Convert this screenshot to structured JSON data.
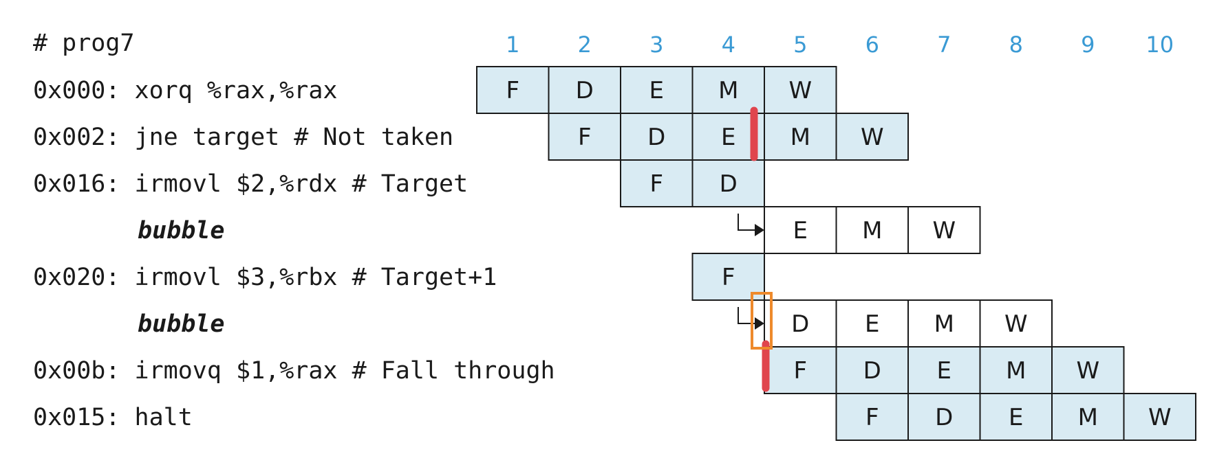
{
  "program_title": "# prog7",
  "cycles": [
    "1",
    "2",
    "3",
    "4",
    "5",
    "6",
    "7",
    "8",
    "9",
    "10"
  ],
  "colors": {
    "cycle_label": "#3a9ad4",
    "filled_cell": "#d9ebf3",
    "empty_cell": "#ffffff",
    "cell_border": "#1a1a1a",
    "red_marker": "#e0454d",
    "orange_marker": "#ee8a2c"
  },
  "instructions": [
    {
      "text": "0x000: xorq %rax,%rax",
      "bubble": false,
      "start_cycle": 1,
      "stages": [
        "F",
        "D",
        "E",
        "M",
        "W"
      ],
      "filled": true,
      "arrow": false
    },
    {
      "text": "0x002: jne target # Not taken",
      "bubble": false,
      "start_cycle": 2,
      "stages": [
        "F",
        "D",
        "E",
        "M",
        "W"
      ],
      "filled": true,
      "arrow": false
    },
    {
      "text": "0x016: irmovl $2,%rdx # Target",
      "bubble": false,
      "start_cycle": 3,
      "stages": [
        "F",
        "D"
      ],
      "filled": true,
      "arrow": false
    },
    {
      "text": "bubble",
      "bubble": true,
      "start_cycle": 5,
      "stages": [
        "E",
        "M",
        "W"
      ],
      "filled": false,
      "arrow": true
    },
    {
      "text": "0x020: irmovl $3,%rbx # Target+1",
      "bubble": false,
      "start_cycle": 4,
      "stages": [
        "F"
      ],
      "filled": true,
      "arrow": false
    },
    {
      "text": "bubble",
      "bubble": true,
      "start_cycle": 5,
      "stages": [
        "D",
        "E",
        "M",
        "W"
      ],
      "filled": false,
      "arrow": true
    },
    {
      "text": "0x00b: irmovq $1,%rax # Fall through",
      "bubble": false,
      "start_cycle": 5,
      "stages": [
        "F",
        "D",
        "E",
        "M",
        "W"
      ],
      "filled": true,
      "arrow": false
    },
    {
      "text": "0x015: halt",
      "bubble": false,
      "start_cycle": 6,
      "stages": [
        "F",
        "D",
        "E",
        "M",
        "W"
      ],
      "filled": true,
      "arrow": false
    }
  ]
}
